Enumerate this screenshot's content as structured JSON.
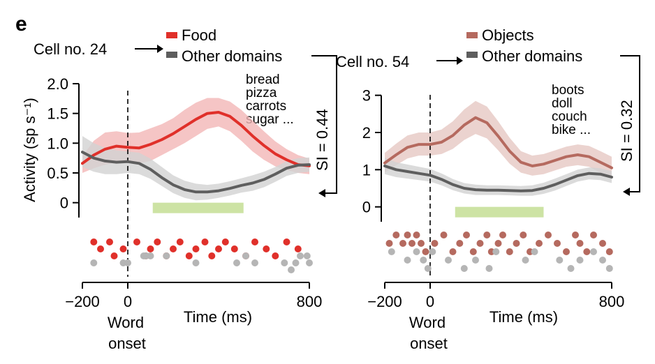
{
  "panel_letter": "e",
  "colors": {
    "food": "#e0302a",
    "food_band": "#f2b6b6",
    "objects": "#b56a5f",
    "objects_band": "#e6c8c3",
    "other": "#5e5e5e",
    "other_band": "#d2d2d2",
    "other_dots": "#b5b5b5",
    "word_period": "#cde3a4",
    "axis": "#000000"
  },
  "chart_data": [
    {
      "type": "line",
      "cell_label": "Cell no. 24",
      "ylabel": "Activity (sp s⁻¹)",
      "xlabel": "Time (ms)",
      "x_onset_label_1": "Word",
      "x_onset_label_2": "onset",
      "xlim": [
        -200,
        800
      ],
      "ylim": [
        -0.25,
        2.0
      ],
      "yticks": [
        0,
        0.5,
        1.0,
        1.5,
        2.0
      ],
      "ytick_labels": [
        "0",
        "0.5",
        "1.0",
        "1.5",
        "2.0"
      ],
      "xticks": [
        -200,
        0,
        800
      ],
      "xtick_labels": [
        "−200",
        "0",
        "800"
      ],
      "onset_x": 0,
      "word_period": [
        110,
        510
      ],
      "si_label": "SI = 0.44",
      "example_words": [
        "bread",
        "pizza",
        "carrots",
        "sugar ..."
      ],
      "series": [
        {
          "name": "Food",
          "color_key": "food",
          "band_key": "food_band",
          "x": [
            -200,
            -150,
            -100,
            -50,
            0,
            50,
            100,
            150,
            200,
            250,
            300,
            350,
            400,
            450,
            500,
            550,
            600,
            650,
            700,
            750,
            800
          ],
          "values": [
            0.66,
            0.8,
            0.9,
            0.95,
            0.93,
            0.92,
            0.98,
            1.06,
            1.16,
            1.28,
            1.4,
            1.5,
            1.52,
            1.45,
            1.3,
            1.12,
            0.96,
            0.82,
            0.72,
            0.64,
            0.62
          ],
          "upper": [
            0.78,
            1.04,
            1.18,
            1.2,
            1.17,
            1.18,
            1.25,
            1.32,
            1.42,
            1.56,
            1.68,
            1.76,
            1.76,
            1.7,
            1.56,
            1.38,
            1.2,
            1.03,
            0.9,
            0.8,
            0.74
          ],
          "lower": [
            0.5,
            0.58,
            0.64,
            0.68,
            0.68,
            0.66,
            0.7,
            0.8,
            0.9,
            1.0,
            1.12,
            1.24,
            1.28,
            1.2,
            1.04,
            0.86,
            0.72,
            0.61,
            0.55,
            0.5,
            0.48
          ]
        },
        {
          "name": "Other domains",
          "color_key": "other",
          "band_key": "other_band",
          "x": [
            -200,
            -150,
            -100,
            -50,
            0,
            50,
            100,
            150,
            200,
            250,
            300,
            350,
            400,
            450,
            500,
            550,
            600,
            650,
            700,
            750,
            800
          ],
          "values": [
            0.85,
            0.75,
            0.7,
            0.68,
            0.69,
            0.66,
            0.56,
            0.42,
            0.3,
            0.22,
            0.18,
            0.18,
            0.2,
            0.24,
            0.29,
            0.33,
            0.39,
            0.48,
            0.58,
            0.63,
            0.64
          ],
          "upper": [
            1.12,
            1.0,
            0.92,
            0.88,
            0.86,
            0.84,
            0.74,
            0.6,
            0.46,
            0.37,
            0.32,
            0.3,
            0.32,
            0.36,
            0.41,
            0.46,
            0.52,
            0.6,
            0.7,
            0.75,
            0.76
          ],
          "lower": [
            0.6,
            0.52,
            0.48,
            0.48,
            0.5,
            0.48,
            0.4,
            0.28,
            0.16,
            0.08,
            0.04,
            0.05,
            0.08,
            0.12,
            0.17,
            0.2,
            0.26,
            0.35,
            0.45,
            0.5,
            0.52
          ]
        }
      ],
      "raster": [
        {
          "color_key": "food",
          "times": [
            -150,
            -120,
            -80,
            -60,
            -20,
            40,
            80,
            100,
            130,
            170,
            200,
            230,
            270,
            300,
            340,
            370,
            400,
            430,
            470,
            520,
            560,
            610,
            650,
            700,
            750
          ],
          "rows": [
            0,
            1,
            0,
            2,
            1,
            0,
            2,
            1,
            0,
            2,
            1,
            0,
            2,
            1,
            0,
            2,
            1,
            0,
            1,
            2,
            0,
            1,
            2,
            0,
            1
          ]
        },
        {
          "color_key": "other_dots",
          "times": [
            -150,
            -20,
            0,
            70,
            80,
            100,
            170,
            300,
            480,
            520,
            560,
            690,
            720,
            740,
            760,
            790,
            800
          ],
          "rows": [
            3,
            3,
            3,
            2,
            2,
            2,
            2,
            3,
            3,
            2,
            3,
            3,
            4,
            3,
            2,
            2,
            3
          ]
        }
      ]
    },
    {
      "type": "line",
      "cell_label": "Cell no. 54",
      "ylabel": "",
      "xlabel": "Time (ms)",
      "x_onset_label_1": "Word",
      "x_onset_label_2": "onset",
      "xlim": [
        -200,
        800
      ],
      "ylim": [
        -0.4,
        3.2
      ],
      "yticks": [
        0,
        1,
        2,
        3
      ],
      "ytick_labels": [
        "0",
        "1",
        "2",
        "3"
      ],
      "xticks": [
        -200,
        0,
        800
      ],
      "xtick_labels": [
        "−200",
        "0",
        "800"
      ],
      "onset_x": 0,
      "word_period": [
        110,
        500
      ],
      "si_label": "SI = 0.32",
      "example_words": [
        "boots",
        "doll",
        "couch",
        "bike ..."
      ],
      "series": [
        {
          "name": "Objects",
          "color_key": "objects",
          "band_key": "objects_band",
          "x": [
            -200,
            -150,
            -100,
            -50,
            0,
            50,
            100,
            150,
            200,
            250,
            300,
            350,
            400,
            450,
            500,
            550,
            600,
            650,
            700,
            750,
            800
          ],
          "values": [
            1.18,
            1.4,
            1.6,
            1.68,
            1.68,
            1.74,
            1.92,
            2.2,
            2.4,
            2.26,
            1.9,
            1.5,
            1.2,
            1.1,
            1.15,
            1.25,
            1.35,
            1.4,
            1.35,
            1.2,
            1.05
          ],
          "upper": [
            1.45,
            1.7,
            1.92,
            2.0,
            2.0,
            2.08,
            2.3,
            2.62,
            2.85,
            2.7,
            2.3,
            1.86,
            1.5,
            1.38,
            1.42,
            1.52,
            1.62,
            1.68,
            1.64,
            1.5,
            1.35
          ],
          "lower": [
            0.92,
            1.12,
            1.3,
            1.38,
            1.38,
            1.42,
            1.56,
            1.8,
            1.96,
            1.84,
            1.52,
            1.16,
            0.92,
            0.84,
            0.88,
            0.98,
            1.08,
            1.12,
            1.08,
            0.92,
            0.78
          ]
        },
        {
          "name": "Other domains",
          "color_key": "other",
          "band_key": "other_band",
          "x": [
            -200,
            -150,
            -100,
            -50,
            0,
            50,
            100,
            150,
            200,
            250,
            300,
            350,
            400,
            450,
            500,
            550,
            600,
            650,
            700,
            750,
            800
          ],
          "values": [
            1.1,
            1.0,
            0.95,
            0.9,
            0.85,
            0.74,
            0.6,
            0.5,
            0.46,
            0.45,
            0.45,
            0.44,
            0.43,
            0.44,
            0.5,
            0.6,
            0.72,
            0.84,
            0.9,
            0.88,
            0.8
          ],
          "upper": [
            1.32,
            1.2,
            1.14,
            1.08,
            1.02,
            0.9,
            0.75,
            0.64,
            0.6,
            0.58,
            0.58,
            0.57,
            0.56,
            0.58,
            0.65,
            0.76,
            0.88,
            1.0,
            1.06,
            1.04,
            0.96
          ],
          "lower": [
            0.88,
            0.8,
            0.76,
            0.72,
            0.68,
            0.58,
            0.45,
            0.36,
            0.32,
            0.32,
            0.32,
            0.31,
            0.3,
            0.3,
            0.35,
            0.44,
            0.56,
            0.68,
            0.74,
            0.72,
            0.64
          ]
        }
      ],
      "raster": [
        {
          "color_key": "objects",
          "times": [
            -180,
            -150,
            -120,
            -100,
            -80,
            -60,
            -40,
            -20,
            20,
            60,
            100,
            130,
            160,
            190,
            220,
            250,
            270,
            300,
            320,
            350,
            380,
            410,
            440,
            480,
            520,
            560,
            600,
            640,
            660,
            690,
            720,
            760,
            790
          ],
          "rows": [
            1,
            0,
            1,
            0,
            1,
            0,
            1,
            2,
            1,
            0,
            2,
            1,
            0,
            2,
            1,
            0,
            2,
            1,
            0,
            2,
            1,
            0,
            2,
            1,
            0,
            1,
            2,
            0,
            1,
            2,
            0,
            1,
            2
          ]
        },
        {
          "color_key": "other_dots",
          "times": [
            -170,
            -100,
            -60,
            -30,
            -10,
            10,
            80,
            150,
            200,
            260,
            290,
            420,
            460,
            570,
            620,
            660,
            720,
            760,
            790
          ],
          "rows": [
            2,
            3,
            2,
            3,
            4,
            2,
            3,
            4,
            3,
            4,
            2,
            3,
            2,
            3,
            4,
            3,
            2,
            3,
            4
          ]
        }
      ]
    }
  ]
}
